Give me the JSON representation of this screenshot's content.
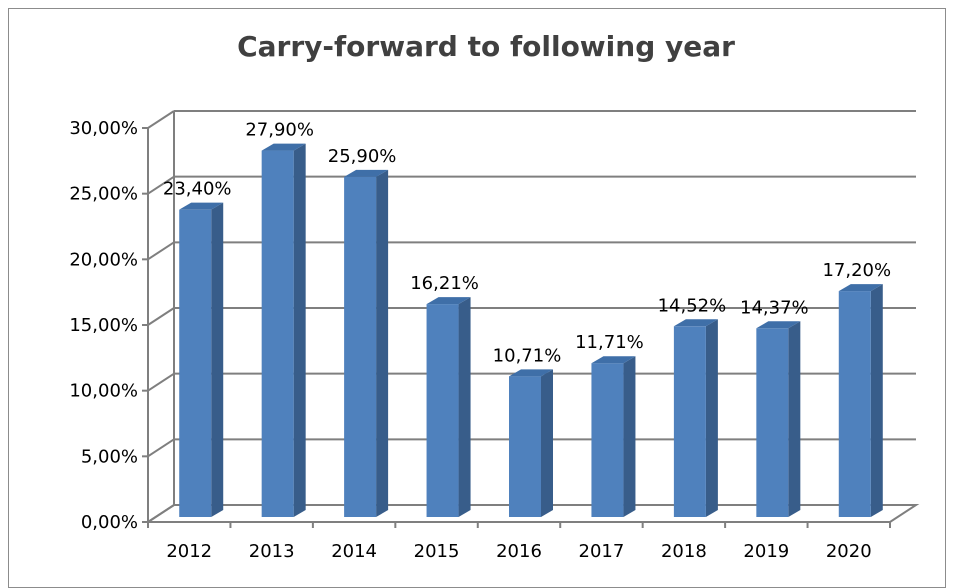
{
  "chart_data": {
    "type": "bar",
    "title": "Carry-forward to following year",
    "categories": [
      "2012",
      "2013",
      "2014",
      "2015",
      "2016",
      "2017",
      "2018",
      "2019",
      "2020"
    ],
    "values": [
      23.4,
      27.9,
      25.9,
      16.21,
      10.71,
      11.71,
      14.52,
      14.37,
      17.2
    ],
    "data_labels": [
      "23,40%",
      "27,90%",
      "25,90%",
      "16,21%",
      "10,71%",
      "11,71%",
      "14,52%",
      "14,37%",
      "17,20%"
    ],
    "y_ticks": [
      "0,00%",
      "5,00%",
      "10,00%",
      "15,00%",
      "20,00%",
      "25,00%",
      "30,00%"
    ],
    "ylim": [
      0,
      30
    ],
    "xlabel": "",
    "ylabel": "",
    "grid": true,
    "legend": "none",
    "style": "3d-column",
    "colors": {
      "bar_front": "#4f81bd",
      "bar_side": "#385d8a",
      "bar_top": "#3f6fa8",
      "grid": "#7f7f7f"
    }
  }
}
